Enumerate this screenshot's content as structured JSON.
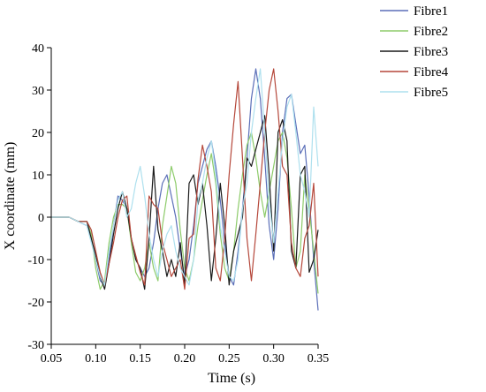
{
  "chart_data": {
    "type": "line",
    "xlabel": "Time (s)",
    "ylabel": "X coordinate (mm)",
    "xlim": [
      0.05,
      0.35
    ],
    "ylim": [
      -30,
      40
    ],
    "xticks": [
      "0.05",
      "0.10",
      "0.15",
      "0.20",
      "0.25",
      "0.30",
      "0.35"
    ],
    "yticks": [
      "-30",
      "-20",
      "-10",
      "0",
      "10",
      "20",
      "30",
      "40"
    ],
    "legend_position": "top-right",
    "grid": false,
    "series": [
      {
        "name": "Fibre1",
        "color": "#5b6fb8",
        "x": [
          0.05,
          0.06,
          0.07,
          0.08,
          0.09,
          0.095,
          0.1,
          0.105,
          0.11,
          0.115,
          0.12,
          0.125,
          0.13,
          0.135,
          0.14,
          0.145,
          0.15,
          0.155,
          0.16,
          0.165,
          0.17,
          0.175,
          0.18,
          0.185,
          0.19,
          0.195,
          0.2,
          0.205,
          0.21,
          0.215,
          0.22,
          0.225,
          0.23,
          0.235,
          0.24,
          0.245,
          0.25,
          0.255,
          0.26,
          0.265,
          0.27,
          0.275,
          0.28,
          0.285,
          0.29,
          0.295,
          0.3,
          0.305,
          0.31,
          0.315,
          0.32,
          0.325,
          0.33,
          0.335,
          0.34,
          0.345,
          0.35
        ],
        "y": [
          0,
          0,
          0,
          -1,
          -2,
          -5,
          -10,
          -15,
          -16,
          -10,
          -2,
          5,
          4,
          2,
          -5,
          -10,
          -12,
          -14,
          -12,
          -6,
          2,
          8,
          10,
          5,
          0,
          -8,
          -14,
          -10,
          -2,
          8,
          12,
          16,
          18,
          12,
          4,
          -6,
          -14,
          -16,
          -8,
          2,
          14,
          28,
          35,
          28,
          14,
          -2,
          -10,
          2,
          20,
          28,
          29,
          22,
          15,
          17,
          5,
          -10,
          -22
        ]
      },
      {
        "name": "Fibre2",
        "color": "#8dcb6a",
        "x": [
          0.05,
          0.06,
          0.07,
          0.08,
          0.09,
          0.095,
          0.1,
          0.105,
          0.11,
          0.115,
          0.12,
          0.125,
          0.13,
          0.135,
          0.14,
          0.145,
          0.15,
          0.155,
          0.16,
          0.165,
          0.17,
          0.175,
          0.18,
          0.185,
          0.19,
          0.195,
          0.2,
          0.205,
          0.21,
          0.215,
          0.22,
          0.225,
          0.23,
          0.235,
          0.24,
          0.245,
          0.25,
          0.255,
          0.26,
          0.265,
          0.27,
          0.275,
          0.28,
          0.285,
          0.29,
          0.295,
          0.3,
          0.305,
          0.31,
          0.315,
          0.32,
          0.325,
          0.33,
          0.335,
          0.34,
          0.345,
          0.35
        ],
        "y": [
          0,
          0,
          0,
          -1,
          -1,
          -4,
          -12,
          -17,
          -15,
          -6,
          0,
          3,
          3,
          2,
          -6,
          -13,
          -15,
          -12,
          -6,
          -12,
          -15,
          -2,
          5,
          12,
          8,
          -3,
          -12,
          -15,
          -10,
          -2,
          4,
          10,
          15,
          8,
          -4,
          -12,
          -15,
          -8,
          2,
          10,
          17,
          20,
          14,
          6,
          0,
          6,
          12,
          18,
          20,
          14,
          2,
          -12,
          -8,
          10,
          2,
          -8,
          -18
        ]
      },
      {
        "name": "Fibre3",
        "color": "#1a1a1a",
        "x": [
          0.05,
          0.06,
          0.07,
          0.08,
          0.09,
          0.095,
          0.1,
          0.105,
          0.11,
          0.115,
          0.12,
          0.125,
          0.13,
          0.135,
          0.14,
          0.145,
          0.15,
          0.155,
          0.16,
          0.165,
          0.17,
          0.175,
          0.18,
          0.185,
          0.19,
          0.195,
          0.2,
          0.205,
          0.21,
          0.215,
          0.22,
          0.225,
          0.23,
          0.235,
          0.24,
          0.245,
          0.25,
          0.255,
          0.26,
          0.265,
          0.27,
          0.275,
          0.28,
          0.285,
          0.29,
          0.295,
          0.3,
          0.305,
          0.31,
          0.315,
          0.32,
          0.325,
          0.33,
          0.335,
          0.34,
          0.345,
          0.35
        ],
        "y": [
          0,
          0,
          0,
          -1,
          -1,
          -5,
          -9,
          -14,
          -17,
          -11,
          -4,
          2,
          6,
          2,
          -5,
          -10,
          -12,
          -17,
          -5,
          12,
          -3,
          -8,
          -14,
          -10,
          -14,
          -6,
          -16,
          8,
          10,
          3,
          8,
          -2,
          -15,
          -5,
          8,
          -2,
          -16,
          -8,
          -4,
          0,
          14,
          12,
          16,
          20,
          24,
          10,
          -8,
          20,
          23,
          18,
          -8,
          -12,
          10,
          12,
          -13,
          -10,
          -3
        ]
      },
      {
        "name": "Fibre4",
        "color": "#b5473a",
        "x": [
          0.05,
          0.06,
          0.07,
          0.08,
          0.09,
          0.095,
          0.1,
          0.105,
          0.11,
          0.115,
          0.12,
          0.125,
          0.13,
          0.135,
          0.14,
          0.145,
          0.15,
          0.155,
          0.16,
          0.165,
          0.17,
          0.175,
          0.18,
          0.185,
          0.19,
          0.195,
          0.2,
          0.205,
          0.21,
          0.215,
          0.22,
          0.225,
          0.23,
          0.235,
          0.24,
          0.245,
          0.25,
          0.255,
          0.26,
          0.265,
          0.27,
          0.275,
          0.28,
          0.285,
          0.29,
          0.295,
          0.3,
          0.305,
          0.31,
          0.315,
          0.32,
          0.325,
          0.33,
          0.335,
          0.34,
          0.345,
          0.35
        ],
        "y": [
          0,
          0,
          0,
          -1,
          -1,
          -3,
          -8,
          -13,
          -16,
          -11,
          -6,
          0,
          4,
          5,
          -5,
          -9,
          -13,
          -16,
          5,
          3,
          2,
          -6,
          -10,
          -14,
          -12,
          -10,
          -17,
          -5,
          -4,
          9,
          17,
          12,
          6,
          -12,
          -15,
          -5,
          10,
          22,
          32,
          14,
          -5,
          -15,
          -4,
          8,
          20,
          30,
          35,
          25,
          12,
          10,
          -6,
          -12,
          -14,
          -5,
          -2,
          8,
          -14
        ]
      },
      {
        "name": "Fibre5",
        "color": "#aee0ee",
        "x": [
          0.05,
          0.06,
          0.07,
          0.08,
          0.09,
          0.095,
          0.1,
          0.105,
          0.11,
          0.115,
          0.12,
          0.125,
          0.13,
          0.135,
          0.14,
          0.145,
          0.15,
          0.155,
          0.16,
          0.165,
          0.17,
          0.175,
          0.18,
          0.185,
          0.19,
          0.195,
          0.2,
          0.205,
          0.21,
          0.215,
          0.22,
          0.225,
          0.23,
          0.235,
          0.24,
          0.245,
          0.25,
          0.255,
          0.26,
          0.265,
          0.27,
          0.275,
          0.28,
          0.285,
          0.29,
          0.295,
          0.3,
          0.305,
          0.31,
          0.315,
          0.32,
          0.325,
          0.33,
          0.335,
          0.34,
          0.345,
          0.35
        ],
        "y": [
          0,
          0,
          0,
          -1,
          -2,
          -6,
          -10,
          -14,
          -16,
          -8,
          -2,
          4,
          6,
          0,
          2,
          8,
          12,
          5,
          -4,
          -10,
          -14,
          -8,
          -4,
          -2,
          -8,
          -12,
          -14,
          -16,
          -10,
          4,
          8,
          14,
          18,
          10,
          -2,
          -8,
          -14,
          -15,
          -10,
          2,
          8,
          20,
          28,
          35,
          20,
          4,
          -6,
          6,
          18,
          26,
          29,
          20,
          10,
          6,
          0,
          26,
          12
        ]
      }
    ]
  }
}
